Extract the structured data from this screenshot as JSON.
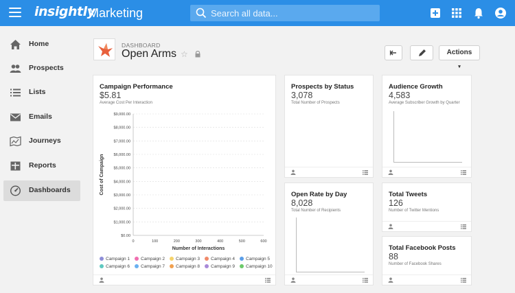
{
  "header": {
    "logo_text": "insightly",
    "app_title": "Marketing",
    "search_placeholder": "Search all data..."
  },
  "sidebar": {
    "items": [
      {
        "label": "Home",
        "icon": "home-icon"
      },
      {
        "label": "Prospects",
        "icon": "people-icon"
      },
      {
        "label": "Lists",
        "icon": "list-icon"
      },
      {
        "label": "Emails",
        "icon": "email-icon"
      },
      {
        "label": "Journeys",
        "icon": "map-icon"
      },
      {
        "label": "Reports",
        "icon": "reports-icon"
      },
      {
        "label": "Dashboards",
        "icon": "dashboard-icon",
        "active": true
      }
    ]
  },
  "dashboard": {
    "label": "DASHBOARD",
    "title": "Open Arms",
    "actions_label": "Actions"
  },
  "cards": {
    "campaign": {
      "title": "Campaign Performance",
      "value": "$5.81",
      "subtitle": "Average Cost Per Interaction"
    },
    "prospects": {
      "title": "Prospects by Status",
      "value": "3,078",
      "subtitle": "Total Number of Prospects"
    },
    "audience": {
      "title": "Audience Growth",
      "value": "4,583",
      "subtitle": "Average Subscriber Growth by Quarter"
    },
    "openrate": {
      "title": "Open Rate by Day",
      "value": "8,028",
      "subtitle": "Total Number of Recipients"
    },
    "tweets": {
      "title": "Total Tweets",
      "value": "126",
      "subtitle": "Number of Twitter Mentions"
    },
    "facebook": {
      "title": "Total Facebook Posts",
      "value": "88",
      "subtitle": "Number of Facebook Shares"
    }
  },
  "chart_data": {
    "type": "scatter",
    "xlabel": "Number of Interactions",
    "ylabel": "Cost of Campaign",
    "xlim": [
      0,
      600
    ],
    "ylim": [
      0,
      9000
    ],
    "x_ticks": [
      "0",
      "100",
      "200",
      "300",
      "400",
      "500",
      "600"
    ],
    "y_ticks": [
      "$0.00",
      "$1,000.00",
      "$2,000.00",
      "$3,000.00",
      "$4,000.00",
      "$5,000.00",
      "$6,000.00",
      "$7,000.00",
      "$8,000.00",
      "$9,000.00"
    ],
    "grid": true,
    "legend_position": "bottom",
    "series": [
      {
        "name": "Campaign 1",
        "color": "#8e8ed8",
        "points": []
      },
      {
        "name": "Campaign 2",
        "color": "#f06fb0",
        "points": []
      },
      {
        "name": "Campaign 3",
        "color": "#f5d36b",
        "points": []
      },
      {
        "name": "Campaign 4",
        "color": "#f08a6a",
        "points": []
      },
      {
        "name": "Campaign 5",
        "color": "#5b9ee8",
        "points": []
      },
      {
        "name": "Campaign 6",
        "color": "#5fc8c0",
        "points": []
      },
      {
        "name": "Campaign 7",
        "color": "#6ab0f0",
        "points": []
      },
      {
        "name": "Campaign 8",
        "color": "#f0a050",
        "points": []
      },
      {
        "name": "Campaign 9",
        "color": "#a88ad8",
        "points": []
      },
      {
        "name": "Campaign 10",
        "color": "#6cc96a",
        "points": []
      }
    ]
  }
}
